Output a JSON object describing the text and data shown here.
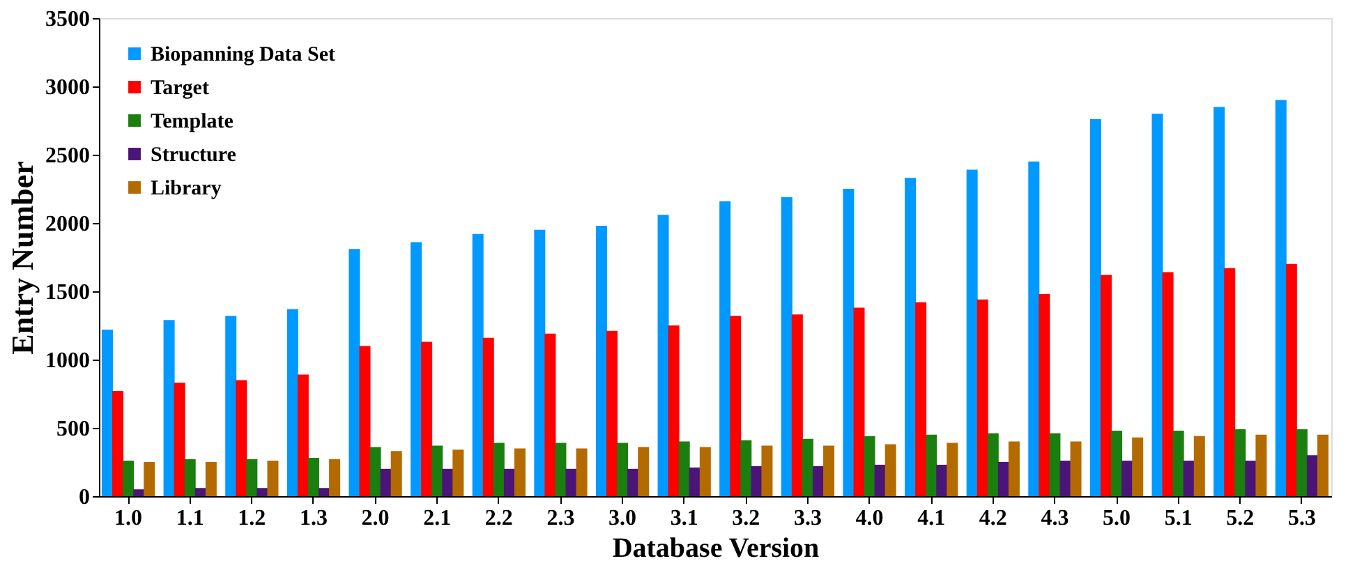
{
  "chart_data": {
    "type": "bar",
    "xlabel": "Database Version",
    "ylabel": "Entry Number",
    "categories": [
      "1.0",
      "1.1",
      "1.2",
      "1.3",
      "2.0",
      "2.1",
      "2.2",
      "2.3",
      "3.0",
      "3.1",
      "3.2",
      "3.3",
      "4.0",
      "4.1",
      "4.2",
      "4.3",
      "5.0",
      "5.1",
      "5.2",
      "5.3"
    ],
    "series": [
      {
        "name": "Biopanning Data Set",
        "color": "#0099ff",
        "values": [
          1220,
          1290,
          1320,
          1370,
          1810,
          1860,
          1920,
          1950,
          1980,
          2060,
          2160,
          2190,
          2250,
          2330,
          2390,
          2450,
          2760,
          2800,
          2850,
          2900
        ]
      },
      {
        "name": "Target",
        "color": "#ff0000",
        "values": [
          770,
          830,
          850,
          890,
          1100,
          1130,
          1160,
          1190,
          1210,
          1250,
          1320,
          1330,
          1380,
          1420,
          1440,
          1480,
          1620,
          1640,
          1670,
          1700
        ]
      },
      {
        "name": "Template",
        "color": "#1a7f0f",
        "values": [
          260,
          270,
          270,
          280,
          360,
          370,
          390,
          390,
          390,
          400,
          410,
          420,
          440,
          450,
          460,
          460,
          480,
          480,
          490,
          490
        ]
      },
      {
        "name": "Structure",
        "color": "#4b1478",
        "values": [
          50,
          60,
          60,
          60,
          200,
          200,
          200,
          200,
          200,
          210,
          220,
          220,
          230,
          230,
          250,
          260,
          260,
          260,
          260,
          300
        ]
      },
      {
        "name": "Library",
        "color": "#b36b00",
        "values": [
          250,
          250,
          260,
          270,
          330,
          340,
          350,
          350,
          360,
          360,
          370,
          370,
          380,
          390,
          400,
          400,
          430,
          440,
          450,
          450
        ]
      }
    ],
    "ylim": [
      0,
      3500
    ],
    "yticks": [
      0,
      500,
      1000,
      1500,
      2000,
      2500,
      3000,
      3500
    ],
    "grid": false,
    "legend": "top left"
  }
}
